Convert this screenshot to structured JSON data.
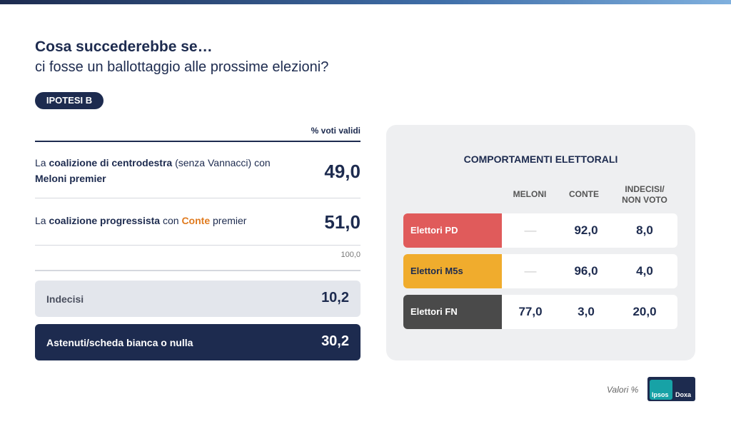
{
  "header": {
    "title": "Cosa succederebbe se…",
    "subtitle": "ci fosse un ballottaggio alle prossime elezioni?",
    "tag": "IPOTESI B"
  },
  "left": {
    "column_header": "% voti validi",
    "rows": [
      {
        "parts": [
          "La ",
          "coalizione di centrodestra",
          " (senza Vannacci) con ",
          "Meloni premier"
        ],
        "value": "49,0"
      },
      {
        "parts": [
          "La ",
          "coalizione progressista",
          " con ",
          "Conte",
          " premier"
        ],
        "value": "51,0"
      }
    ],
    "total": "100,0",
    "boxes": [
      {
        "label": "Indecisi",
        "value": "10,2"
      },
      {
        "label": "Astenuti/scheda bianca o nulla",
        "value": "30,2"
      }
    ]
  },
  "table": {
    "title": "COMPORTAMENTI ELETTORALI",
    "columns": [
      "MELONI",
      "CONTE",
      "INDECISI/ NON VOTO"
    ],
    "rows": [
      {
        "label": "Elettori PD",
        "color": "#e05b5b",
        "cells": [
          "—",
          "92,0",
          "8,0"
        ]
      },
      {
        "label": "Elettori M5s",
        "color": "#f0ac2d",
        "cells": [
          "—",
          "96,0",
          "4,0"
        ]
      },
      {
        "label": "Elettori FN",
        "color": "#4a4a4a",
        "cells": [
          "77,0",
          "3,0",
          "20,0"
        ]
      }
    ]
  },
  "footer": {
    "note": "Valori %",
    "logo": [
      "Ipsos",
      "Doxa"
    ]
  }
}
